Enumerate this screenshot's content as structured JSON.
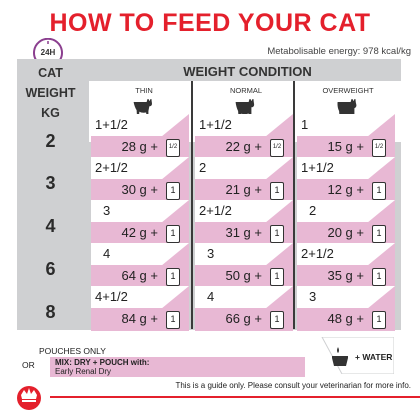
{
  "title": "HOW TO FEED YOUR CAT",
  "clock_label": "24H",
  "energy": "Metabolisable energy: 978 kcal/kg",
  "header": {
    "left": [
      "CAT",
      "WEIGHT",
      "KG"
    ],
    "weight_condition": "WEIGHT CONDITION",
    "columns": [
      "THIN",
      "NORMAL",
      "OVERWEIGHT"
    ]
  },
  "rows": [
    {
      "weight": "2",
      "cells": [
        {
          "pouches": "1+1/2",
          "grams": "28 g  +",
          "icon": "1/2"
        },
        {
          "pouches": "1+1/2",
          "grams": "22 g  +",
          "icon": "1/2"
        },
        {
          "pouches": "1",
          "grams": "15 g  +",
          "icon": "1/2"
        }
      ]
    },
    {
      "weight": "3",
      "cells": [
        {
          "pouches": "2+1/2",
          "grams": "30 g  +",
          "icon": "1"
        },
        {
          "pouches": "2",
          "grams": "21 g  +",
          "icon": "1"
        },
        {
          "pouches": "1+1/2",
          "grams": "12 g  +",
          "icon": "1"
        }
      ]
    },
    {
      "weight": "4",
      "cells": [
        {
          "pouches": "3",
          "grams": "42 g  +",
          "icon": "1"
        },
        {
          "pouches": "2+1/2",
          "grams": "31 g  +",
          "icon": "1"
        },
        {
          "pouches": "2",
          "grams": "20 g  +",
          "icon": "1"
        }
      ]
    },
    {
      "weight": "6",
      "cells": [
        {
          "pouches": "4",
          "grams": "64 g  +",
          "icon": "1"
        },
        {
          "pouches": "3",
          "grams": "50 g  +",
          "icon": "1"
        },
        {
          "pouches": "2+1/2",
          "grams": "35 g  +",
          "icon": "1"
        }
      ]
    },
    {
      "weight": "8",
      "cells": [
        {
          "pouches": "4+1/2",
          "grams": "84 g  +",
          "icon": "1"
        },
        {
          "pouches": "4",
          "grams": "66 g  +",
          "icon": "1"
        },
        {
          "pouches": "3",
          "grams": "48 g  +",
          "icon": "1"
        }
      ]
    }
  ],
  "footer": {
    "pouches_only": "POUCHES ONLY",
    "or": "OR",
    "mix_line1": "MIX: DRY + POUCH with:",
    "mix_line2": "Early Renal Dry",
    "water": "+ WATER",
    "disclaimer": "This is a guide only. Please consult your veterinarian for more info."
  },
  "colors": {
    "accent_red": "#e4202c",
    "pink": "#e8b8d4",
    "grey": "#cfd0d2"
  }
}
